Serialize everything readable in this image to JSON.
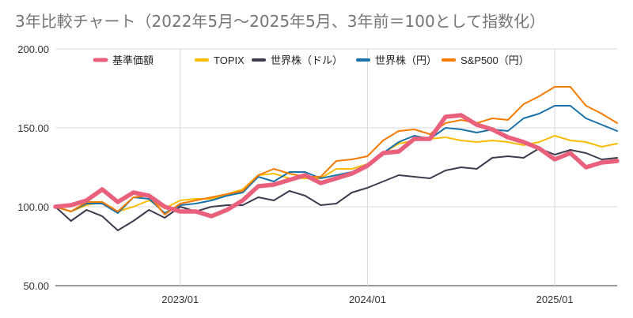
{
  "chart_data": {
    "type": "line",
    "title": "3年比較チャート（2022年5月〜2025年5月、3年前＝100として指数化）",
    "xlabel": "",
    "ylabel": "",
    "ylim": [
      50,
      200
    ],
    "yticks": [
      "50.00",
      "100.00",
      "150.00",
      "200.00"
    ],
    "xtick_labels": [
      "2023/01",
      "2024/01",
      "2025/01"
    ],
    "x": [
      "2022/05",
      "2022/06",
      "2022/07",
      "2022/08",
      "2022/09",
      "2022/10",
      "2022/11",
      "2022/12",
      "2023/01",
      "2023/02",
      "2023/03",
      "2023/04",
      "2023/05",
      "2023/06",
      "2023/07",
      "2023/08",
      "2023/09",
      "2023/10",
      "2023/11",
      "2023/12",
      "2024/01",
      "2024/02",
      "2024/03",
      "2024/04",
      "2024/05",
      "2024/06",
      "2024/07",
      "2024/08",
      "2024/09",
      "2024/10",
      "2024/11",
      "2024/12",
      "2025/01",
      "2025/02",
      "2025/03",
      "2025/04",
      "2025/05"
    ],
    "grid": true,
    "legend_position": "top",
    "series": [
      {
        "name": "基準価額",
        "color": "#e8607c",
        "values": [
          100,
          101,
          104,
          111,
          103,
          109,
          107,
          100,
          97,
          97,
          94,
          98,
          104,
          113,
          114,
          117,
          120,
          115,
          118,
          121,
          126,
          134,
          135,
          143,
          143,
          157,
          158,
          152,
          149,
          144,
          141,
          137,
          130,
          134,
          125,
          128,
          129
        ]
      },
      {
        "name": "TOPIX",
        "color": "#fbbc04",
        "values": [
          100,
          97,
          101,
          103,
          97,
          100,
          104,
          99,
          104,
          105,
          105,
          108,
          111,
          120,
          121,
          118,
          118,
          118,
          124,
          124,
          127,
          134,
          140,
          142,
          143,
          144,
          142,
          141,
          142,
          141,
          139,
          141,
          145,
          142,
          141,
          138,
          140
        ]
      },
      {
        "name": "世界株（ドル）",
        "color": "#3d3c4f",
        "values": [
          100,
          91,
          98,
          94,
          85,
          91,
          98,
          93,
          100,
          97,
          100,
          101,
          101,
          106,
          104,
          110,
          107,
          101,
          102,
          109,
          112,
          116,
          120,
          119,
          118,
          123,
          125,
          124,
          131,
          132,
          131,
          137,
          133,
          136,
          134,
          130,
          131
        ]
      },
      {
        "name": "世界株（円）",
        "color": "#1a73a8",
        "values": [
          100,
          97,
          102,
          102,
          96,
          106,
          105,
          96,
          101,
          102,
          104,
          107,
          109,
          119,
          116,
          122,
          122,
          118,
          120,
          122,
          127,
          134,
          141,
          145,
          143,
          150,
          149,
          147,
          149,
          148,
          156,
          159,
          164,
          164,
          156,
          152,
          148
        ]
      },
      {
        "name": "S&P500（円）",
        "color": "#f57c00",
        "values": [
          100,
          97,
          103,
          103,
          97,
          106,
          107,
          95,
          102,
          104,
          106,
          108,
          110,
          120,
          124,
          121,
          119,
          119,
          129,
          130,
          132,
          142,
          148,
          149,
          146,
          153,
          155,
          153,
          156,
          155,
          165,
          170,
          176,
          176,
          164,
          159,
          153
        ]
      }
    ]
  }
}
